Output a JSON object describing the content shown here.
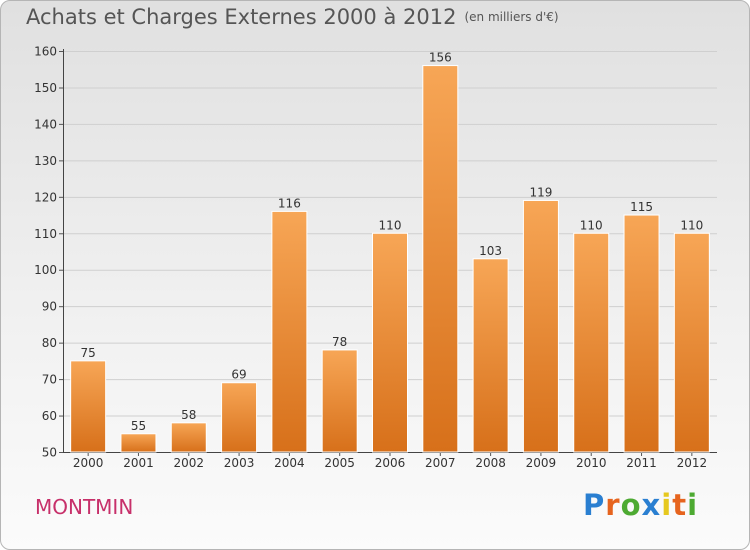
{
  "chart_data": {
    "type": "bar",
    "title": "Achats et Charges Externes 2000 à 2012",
    "subtitle": "(en milliers d'€)",
    "categories": [
      "2000",
      "2001",
      "2002",
      "2003",
      "2004",
      "2005",
      "2006",
      "2007",
      "2008",
      "2009",
      "2010",
      "2011",
      "2012"
    ],
    "values": [
      75,
      55,
      58,
      69,
      116,
      78,
      110,
      156,
      103,
      119,
      110,
      115,
      110
    ],
    "ylim": [
      50,
      160
    ],
    "yticks": [
      50,
      60,
      70,
      80,
      90,
      100,
      110,
      120,
      130,
      140,
      150,
      160
    ],
    "xlabel": "",
    "ylabel": "",
    "grid": true,
    "bar_color": "#f08a2c"
  },
  "location": "MONTMIN",
  "brand": {
    "name": "Proxiti",
    "letters": [
      "P",
      "r",
      "o",
      "x",
      "i",
      "t",
      "i"
    ],
    "colors": [
      "#2a7fd1",
      "#e6641e",
      "#4daa32",
      "#2a7fd1",
      "#e6c81e",
      "#e6641e",
      "#4daa32"
    ]
  }
}
